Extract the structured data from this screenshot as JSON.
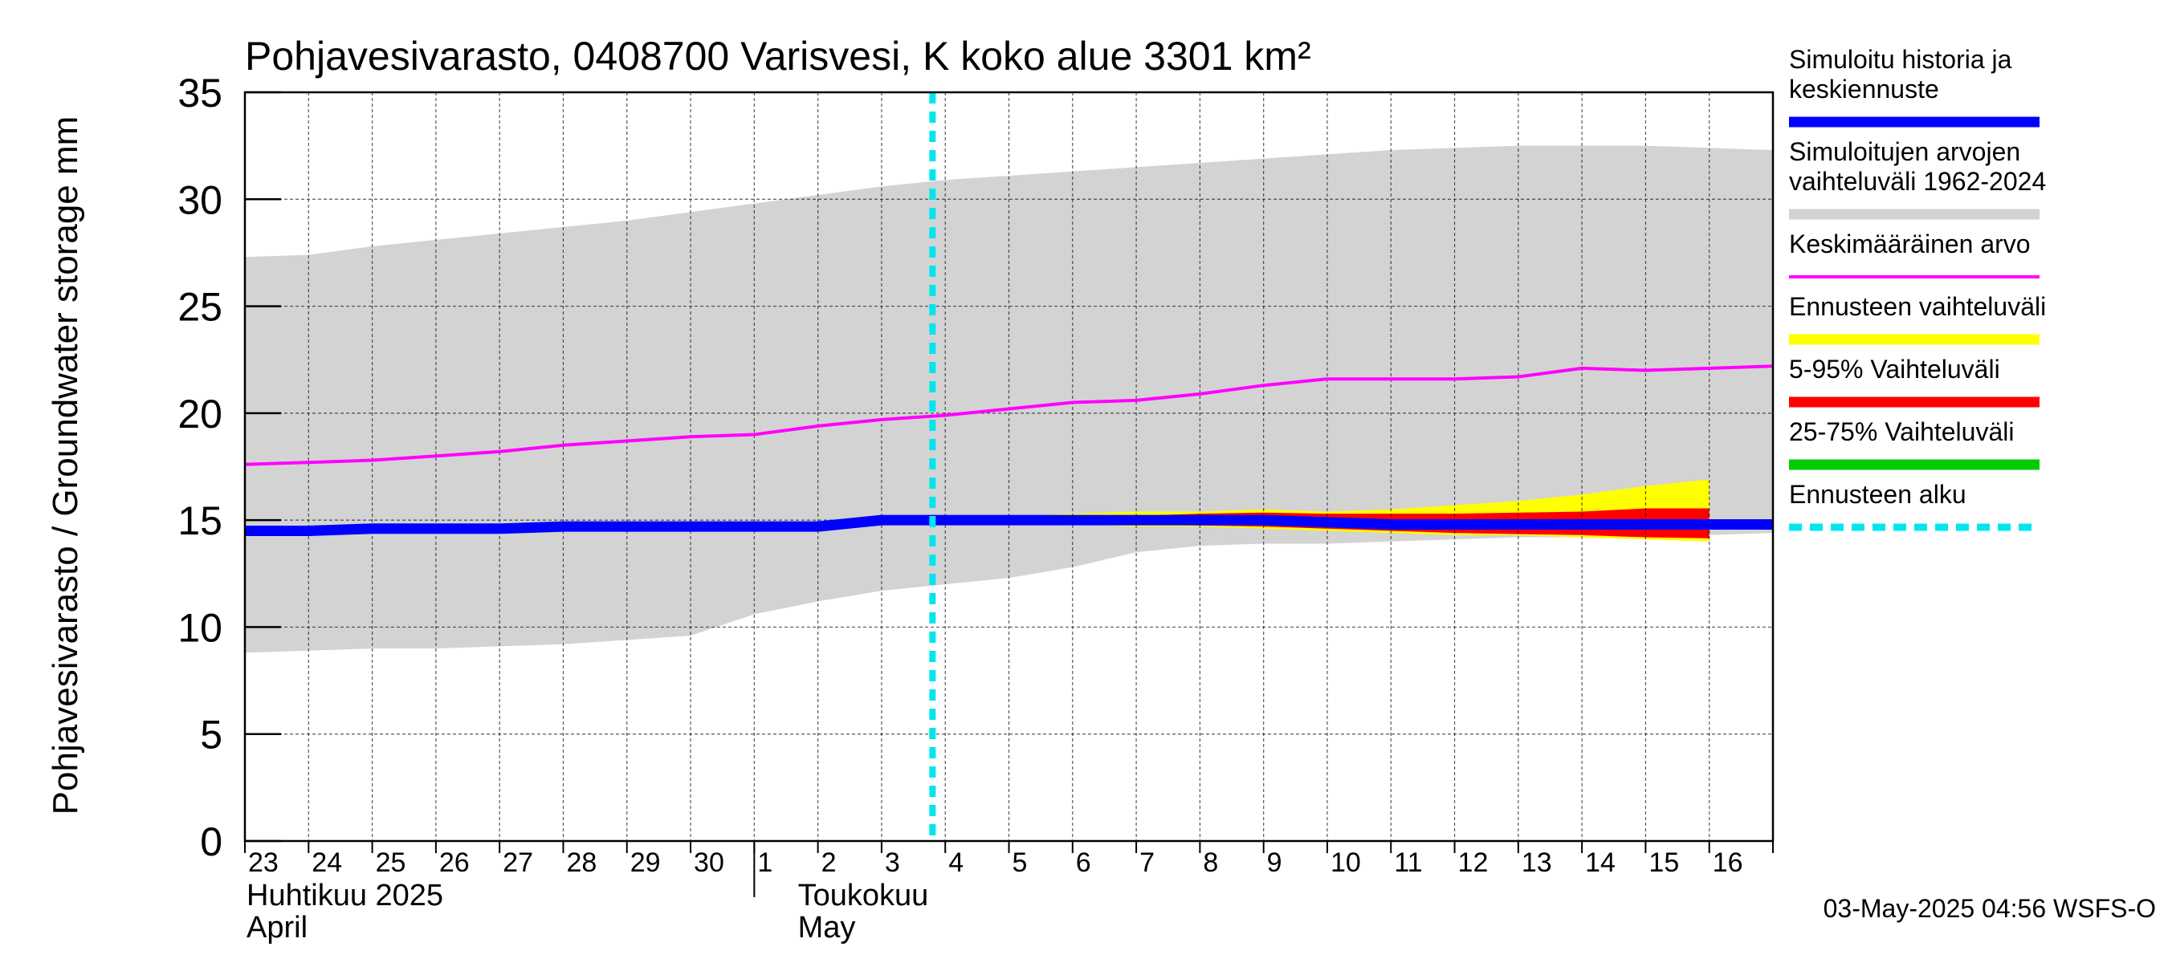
{
  "chart_data": {
    "type": "area",
    "title": "Pohjavesivarasto, 0408700 Varisvesi, K koko alue 3301 km²",
    "ylabel": "Pohjavesivarasto / Groundwater storage   mm",
    "ylim": [
      0,
      35
    ],
    "yticks": [
      0,
      5,
      10,
      15,
      20,
      25,
      30,
      35
    ],
    "grid": true,
    "legend_position": "right",
    "x_day_labels": [
      "23",
      "24",
      "25",
      "26",
      "27",
      "28",
      "29",
      "30",
      "1",
      "2",
      "3",
      "4",
      "5",
      "6",
      "7",
      "8",
      "9",
      "10",
      "11",
      "12",
      "13",
      "14",
      "15",
      "16"
    ],
    "x_month_labels": [
      {
        "line1": "Huhtikuu  2025",
        "line2": "April"
      },
      {
        "line1": "Toukokuu",
        "line2": "May"
      }
    ],
    "forecast_start_day": 10.8,
    "timestamp": "03-May-2025 04:56 WSFS-O",
    "x_days": [
      0,
      1,
      2,
      3,
      4,
      5,
      6,
      7,
      8,
      9,
      10,
      11,
      12,
      13,
      14,
      15,
      16,
      17,
      18,
      19,
      20,
      21,
      22,
      23,
      24
    ],
    "series": [
      {
        "name": "Simuloitujen arvojen vaihteluväli 1962-2024",
        "kind": "band",
        "color": "#d3d3d3",
        "upper": [
          27.3,
          27.4,
          27.8,
          28.1,
          28.4,
          28.7,
          29.0,
          29.4,
          29.8,
          30.2,
          30.6,
          30.9,
          31.1,
          31.3,
          31.5,
          31.7,
          31.9,
          32.1,
          32.3,
          32.4,
          32.5,
          32.5,
          32.5,
          32.4,
          32.3
        ],
        "lower": [
          8.8,
          8.9,
          9.0,
          9.0,
          9.1,
          9.2,
          9.4,
          9.6,
          10.6,
          11.2,
          11.7,
          12.0,
          12.3,
          12.8,
          13.5,
          13.8,
          13.9,
          13.9,
          14.0,
          14.1,
          14.2,
          14.2,
          14.3,
          14.3,
          14.4
        ]
      },
      {
        "name": "Ennusteen vaihteluväli",
        "kind": "band",
        "color": "#ffff00",
        "x_start": 10.8,
        "upper": [
          15.0,
          15.1,
          15.2,
          15.3,
          15.4,
          15.4,
          15.5,
          15.4,
          15.5,
          15.7,
          15.9,
          16.2,
          16.6,
          16.9
        ],
        "lower": [
          15.0,
          14.9,
          14.8,
          14.8,
          14.7,
          14.7,
          14.6,
          14.5,
          14.4,
          14.3,
          14.3,
          14.2,
          14.1,
          14.0
        ]
      },
      {
        "name": "5-95% Vaihteluväli",
        "kind": "band",
        "color": "#ff0000",
        "x_start": 10.8,
        "upper": [
          15.0,
          15.05,
          15.1,
          15.15,
          15.2,
          15.3,
          15.35,
          15.3,
          15.3,
          15.3,
          15.35,
          15.4,
          15.55,
          15.55
        ],
        "lower": [
          15.0,
          14.95,
          14.9,
          14.85,
          14.8,
          14.75,
          14.7,
          14.6,
          14.5,
          14.4,
          14.35,
          14.3,
          14.2,
          14.15
        ]
      },
      {
        "name": "25-75% Vaihteluväli",
        "kind": "band",
        "color": "#00cc00",
        "x_start": 10.8,
        "upper": [
          15.0,
          15.0,
          15.0,
          15.0,
          15.0,
          15.0,
          15.0,
          15.0,
          14.9,
          14.9,
          14.9,
          14.9,
          14.9,
          14.9
        ],
        "lower": [
          15.0,
          15.0,
          15.0,
          15.0,
          15.0,
          15.0,
          15.0,
          14.9,
          14.8,
          14.8,
          14.8,
          14.8,
          14.8,
          14.8
        ]
      },
      {
        "name": "Keskimääräinen arvo",
        "kind": "line",
        "color": "#ff00ff",
        "values": [
          17.6,
          17.7,
          17.8,
          18.0,
          18.2,
          18.5,
          18.7,
          18.9,
          19.0,
          19.4,
          19.7,
          19.9,
          20.2,
          20.5,
          20.6,
          20.9,
          21.3,
          21.6,
          21.6,
          21.6,
          21.7,
          22.1,
          22.0,
          22.1,
          22.2
        ]
      },
      {
        "name": "Simuloitu historia ja keskiennuste",
        "kind": "line",
        "color": "#0000ff",
        "values": [
          14.5,
          14.5,
          14.6,
          14.6,
          14.6,
          14.7,
          14.7,
          14.7,
          14.7,
          14.7,
          15.0,
          15.0,
          15.0,
          15.0,
          15.0,
          15.0,
          15.0,
          14.9,
          14.8,
          14.8,
          14.8,
          14.8,
          14.8,
          14.8,
          14.8
        ]
      }
    ],
    "legend": [
      {
        "lines": [
          "Simuloitu historia ja",
          "keskiennuste"
        ],
        "color": "#0000ff",
        "style": "thick"
      },
      {
        "lines": [
          "Simuloitujen arvojen",
          "vaihteluväli 1962-2024"
        ],
        "color": "#d3d3d3",
        "style": "thick"
      },
      {
        "lines": [
          "Keskimääräinen arvo"
        ],
        "color": "#ff00ff",
        "style": "thin"
      },
      {
        "lines": [
          "Ennusteen vaihteluväli"
        ],
        "color": "#ffff00",
        "style": "thick"
      },
      {
        "lines": [
          "5-95% Vaihteluväli"
        ],
        "color": "#ff0000",
        "style": "thick"
      },
      {
        "lines": [
          "25-75% Vaihteluväli"
        ],
        "color": "#00cc00",
        "style": "thick"
      },
      {
        "lines": [
          "Ennusteen alku"
        ],
        "color": "#00e5ee",
        "style": "dashed"
      }
    ]
  }
}
